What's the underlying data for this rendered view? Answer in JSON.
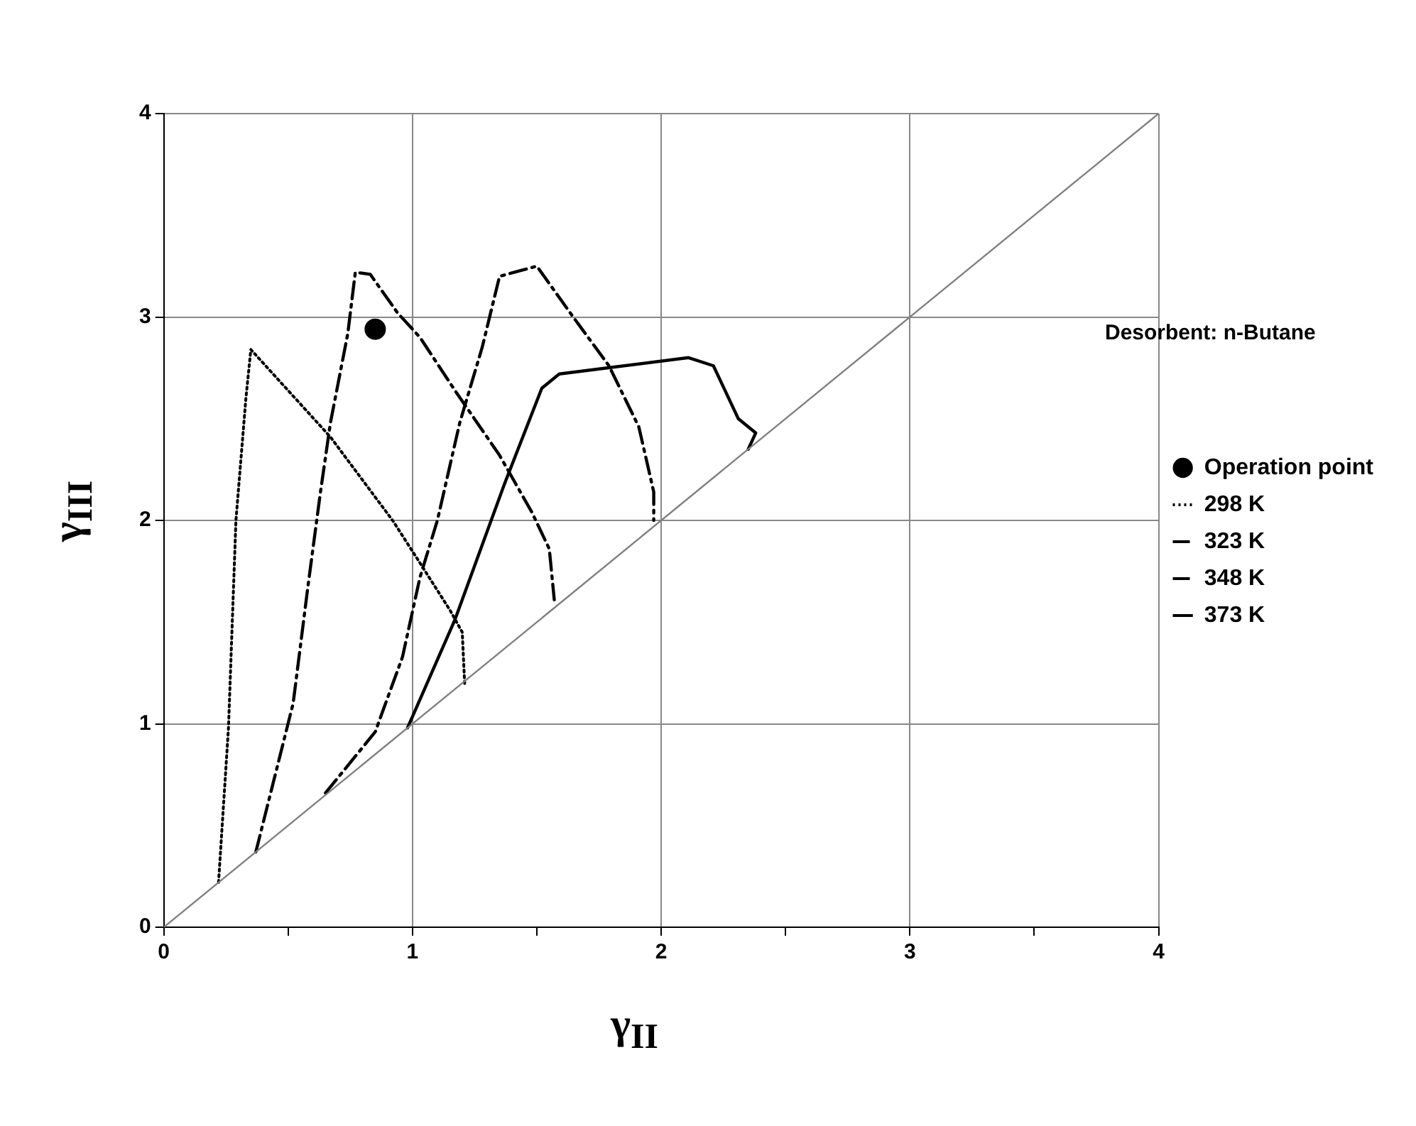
{
  "chart_data": {
    "type": "line",
    "xlabel": "γ$_{II}$",
    "ylabel": "γ$_{III}$",
    "xlim": [
      0,
      4
    ],
    "ylim": [
      0,
      4
    ],
    "xticks": [
      0,
      {
        "value": 0.5,
        "label": null
      },
      1,
      {
        "value": 1.5,
        "label": null
      },
      2,
      {
        "value": 2.5,
        "label": null
      },
      3,
      {
        "value": 3.5,
        "label": null
      },
      4
    ],
    "yticks": [
      0,
      1,
      2,
      3,
      4
    ],
    "grid": true,
    "legend": "right",
    "annotations": [
      "Desorbent: n-Butane"
    ],
    "series": [
      {
        "color": "#808080",
        "line_style": "solid",
        "marker": "none",
        "x": [
          0,
          4
        ],
        "values": [
          0,
          4
        ]
      },
      {
        "type": "scatter",
        "name": "Operation point",
        "color": "#000000",
        "marker": "circle",
        "x": [
          0.85
        ],
        "values": [
          2.94
        ]
      },
      {
        "name": "298 K",
        "color": "#000000",
        "line_style": "dotted",
        "marker": "none",
        "x": [
          0.22,
          0.26,
          0.29,
          0.33,
          0.35,
          0.67,
          0.92,
          1.02,
          1.15,
          1.2,
          1.21
        ],
        "values": [
          0.22,
          0.98,
          2.0,
          2.6,
          2.84,
          2.41,
          2.0,
          1.81,
          1.56,
          1.45,
          1.19
        ]
      },
      {
        "name": "323 K",
        "color": "#000000",
        "line_style": "dashed",
        "marker": "none",
        "x": [
          0.37,
          0.52,
          0.58,
          0.63,
          0.67,
          0.74,
          0.77,
          0.83,
          0.94,
          1.03,
          1.17,
          1.35,
          1.48,
          1.55,
          1.57
        ],
        "values": [
          0.37,
          1.1,
          1.68,
          2.14,
          2.48,
          2.92,
          3.22,
          3.21,
          3.02,
          2.9,
          2.64,
          2.32,
          2.04,
          1.86,
          1.61
        ]
      },
      {
        "name": "348 K",
        "color": "#000000",
        "line_style": "dashed",
        "marker": "none",
        "x": [
          0.65,
          0.85,
          0.96,
          1.03,
          1.1,
          1.19,
          1.28,
          1.35,
          1.5,
          1.64,
          1.79,
          1.91,
          1.97,
          1.97
        ],
        "values": [
          0.66,
          0.96,
          1.33,
          1.72,
          2.0,
          2.48,
          2.85,
          3.2,
          3.25,
          3.01,
          2.76,
          2.46,
          2.14,
          2.0
        ]
      },
      {
        "name": "373 K",
        "color": "#000000",
        "line_style": "solid",
        "marker": "none",
        "x": [
          0.98,
          1.17,
          1.37,
          1.52,
          1.59,
          2.11,
          2.21,
          2.31,
          2.38,
          2.35
        ],
        "values": [
          0.98,
          1.51,
          2.18,
          2.65,
          2.72,
          2.8,
          2.76,
          2.5,
          2.43,
          2.35
        ]
      }
    ]
  }
}
